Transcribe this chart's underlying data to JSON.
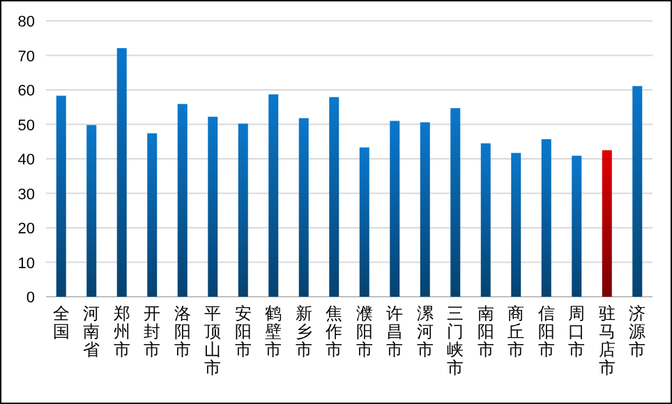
{
  "chart_data": {
    "type": "bar",
    "categories": [
      "全国",
      "河南省",
      "郑州市",
      "开封市",
      "洛阳市",
      "平顶山市",
      "安阳市",
      "鹤壁市",
      "新乡市",
      "焦作市",
      "濮阳市",
      "许昌市",
      "漯河市",
      "三门峡市",
      "南阳市",
      "商丘市",
      "信阳市",
      "周口市",
      "驻马店市",
      "济源市"
    ],
    "values": [
      58.3,
      49.8,
      72.1,
      47.4,
      55.9,
      52.2,
      50.2,
      58.7,
      51.8,
      57.9,
      43.3,
      51.0,
      50.6,
      54.7,
      44.5,
      41.7,
      45.7,
      40.9,
      42.5,
      61.1
    ],
    "colors": [
      "#0a78cc",
      "#0a78cc",
      "#0a78cc",
      "#0a78cc",
      "#0a78cc",
      "#0a78cc",
      "#0a78cc",
      "#0a78cc",
      "#0a78cc",
      "#0a78cc",
      "#0a78cc",
      "#0a78cc",
      "#0a78cc",
      "#0a78cc",
      "#0a78cc",
      "#0a78cc",
      "#0a78cc",
      "#0a78cc",
      "#e00000",
      "#0a78cc"
    ],
    "ylim": [
      0,
      80
    ],
    "yticks": [
      0,
      10,
      20,
      30,
      40,
      50,
      60,
      70,
      80
    ],
    "grid": "y"
  }
}
